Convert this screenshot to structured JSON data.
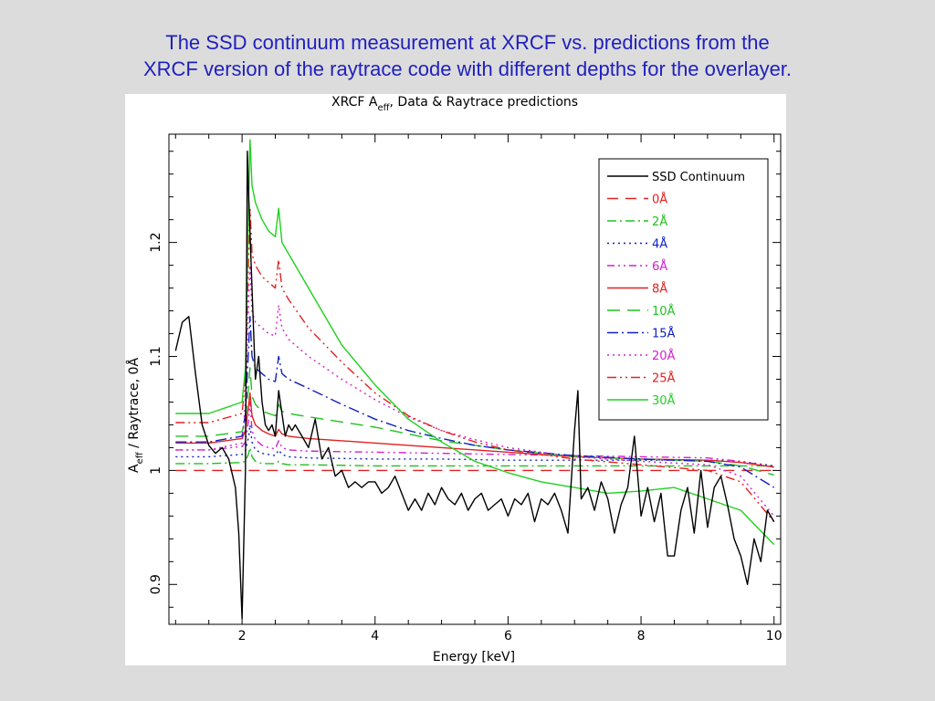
{
  "slide": {
    "title_line1": "The SSD continuum measurement at XRCF vs. predictions from the",
    "title_line2": "XRCF version of the raytrace code with different depths for the overlayer."
  },
  "colors": {
    "title": "#1f1fbf",
    "background": "#dcdcdc",
    "plot_bg": "#ffffff"
  },
  "chart_data": {
    "type": "line",
    "title_parts": {
      "main": "XRCF A",
      "sub": "eff",
      "rest": ", Data & Raytrace predictions"
    },
    "xlabel": "Energy [keV]",
    "ylabel_parts": {
      "main": "A",
      "sub": "eff",
      "rest": " / Raytrace, 0Å"
    },
    "xlim": [
      0.9,
      10.1
    ],
    "ylim": [
      0.865,
      1.295
    ],
    "xticks": [
      2,
      4,
      6,
      8,
      10
    ],
    "yticks": [
      0.9,
      1.0,
      1.1,
      1.2
    ],
    "ytick_labels": [
      "0.9",
      "1",
      "1.1",
      "1.2"
    ],
    "grid": false,
    "legend_position": "top-right",
    "series": [
      {
        "name": "SSD Continuum",
        "color": "#000000",
        "dash": "solid",
        "x": [
          1.0,
          1.1,
          1.2,
          1.3,
          1.4,
          1.5,
          1.6,
          1.7,
          1.8,
          1.9,
          1.95,
          2.0,
          2.05,
          2.08,
          2.1,
          2.15,
          2.2,
          2.25,
          2.3,
          2.35,
          2.4,
          2.45,
          2.5,
          2.55,
          2.6,
          2.65,
          2.7,
          2.75,
          2.8,
          2.9,
          3.0,
          3.1,
          3.2,
          3.3,
          3.4,
          3.5,
          3.6,
          3.7,
          3.8,
          3.9,
          4.0,
          4.1,
          4.2,
          4.3,
          4.4,
          4.5,
          4.6,
          4.7,
          4.8,
          4.9,
          5.0,
          5.1,
          5.2,
          5.3,
          5.4,
          5.5,
          5.6,
          5.7,
          5.8,
          5.9,
          6.0,
          6.1,
          6.2,
          6.3,
          6.4,
          6.5,
          6.6,
          6.7,
          6.8,
          6.9,
          7.0,
          7.05,
          7.1,
          7.2,
          7.3,
          7.4,
          7.5,
          7.6,
          7.7,
          7.8,
          7.9,
          8.0,
          8.1,
          8.2,
          8.3,
          8.4,
          8.5,
          8.6,
          8.7,
          8.8,
          8.9,
          9.0,
          9.1,
          9.2,
          9.3,
          9.4,
          9.5,
          9.6,
          9.7,
          9.8,
          9.9,
          10.0
        ],
        "y": [
          1.105,
          1.13,
          1.135,
          1.085,
          1.04,
          1.022,
          1.015,
          1.02,
          1.01,
          0.985,
          0.945,
          0.87,
          1.0,
          1.28,
          1.24,
          1.16,
          1.08,
          1.1,
          1.06,
          1.04,
          1.035,
          1.04,
          1.03,
          1.07,
          1.05,
          1.03,
          1.04,
          1.035,
          1.04,
          1.03,
          1.02,
          1.045,
          1.01,
          1.02,
          0.995,
          1.0,
          0.985,
          0.99,
          0.985,
          0.99,
          0.99,
          0.98,
          0.985,
          0.995,
          0.98,
          0.965,
          0.975,
          0.965,
          0.98,
          0.97,
          0.985,
          0.975,
          0.97,
          0.98,
          0.965,
          0.975,
          0.98,
          0.965,
          0.97,
          0.975,
          0.96,
          0.975,
          0.97,
          0.98,
          0.955,
          0.975,
          0.97,
          0.98,
          0.965,
          0.945,
          1.035,
          1.07,
          0.975,
          0.985,
          0.965,
          0.99,
          0.975,
          0.945,
          0.97,
          0.985,
          1.03,
          0.96,
          0.985,
          0.955,
          0.98,
          0.925,
          0.925,
          0.965,
          0.985,
          0.945,
          1.0,
          0.95,
          0.985,
          0.995,
          0.97,
          0.94,
          0.925,
          0.9,
          0.94,
          0.92,
          0.965,
          0.955
        ]
      },
      {
        "name": "0Å",
        "color": "#e02020",
        "dash": "12,8",
        "x": [
          1.0,
          2.0,
          5.0,
          8.0,
          10.0
        ],
        "y": [
          1.0,
          1.0,
          1.0,
          1.0,
          1.0
        ]
      },
      {
        "name": "2Å",
        "color": "#20c020",
        "dash": "10,4,2,4",
        "x": [
          1.0,
          1.5,
          2.0,
          2.05,
          2.1,
          2.12,
          2.15,
          2.2,
          2.3,
          2.4,
          2.5,
          2.55,
          2.6,
          2.7,
          3.0,
          4.0,
          5.0,
          6.0,
          7.0,
          8.0,
          9.0,
          10.0
        ],
        "y": [
          1.006,
          1.006,
          1.007,
          1.008,
          1.015,
          1.02,
          1.012,
          1.008,
          1.006,
          1.006,
          1.006,
          1.008,
          1.006,
          1.005,
          1.005,
          1.004,
          1.004,
          1.004,
          1.004,
          1.004,
          1.004,
          1.004
        ]
      },
      {
        "name": "4Å",
        "color": "#1020c0",
        "dash": "2,4",
        "x": [
          1.0,
          1.5,
          2.0,
          2.05,
          2.1,
          2.12,
          2.15,
          2.2,
          2.3,
          2.4,
          2.5,
          2.55,
          2.6,
          2.7,
          3.0,
          4.0,
          5.0,
          6.0,
          7.0,
          8.0,
          9.0,
          9.5,
          10.0
        ],
        "y": [
          1.012,
          1.012,
          1.014,
          1.017,
          1.03,
          1.04,
          1.025,
          1.018,
          1.015,
          1.014,
          1.013,
          1.018,
          1.014,
          1.012,
          1.011,
          1.01,
          1.01,
          1.009,
          1.009,
          1.009,
          1.009,
          1.008,
          1.004
        ]
      },
      {
        "name": "6Å",
        "color": "#d020d0",
        "dash": "8,4,2,4,2,4",
        "x": [
          1.0,
          1.5,
          2.0,
          2.05,
          2.1,
          2.12,
          2.15,
          2.2,
          2.3,
          2.4,
          2.5,
          2.55,
          2.6,
          2.7,
          3.0,
          4.0,
          5.0,
          6.0,
          7.0,
          8.0,
          9.0,
          9.5,
          10.0
        ],
        "y": [
          1.018,
          1.018,
          1.021,
          1.025,
          1.045,
          1.06,
          1.035,
          1.027,
          1.022,
          1.02,
          1.019,
          1.026,
          1.02,
          1.018,
          1.017,
          1.016,
          1.015,
          1.014,
          1.013,
          1.012,
          1.011,
          1.008,
          1.003
        ]
      },
      {
        "name": "8Å",
        "color": "#e02020",
        "dash": "solid",
        "x": [
          1.0,
          1.5,
          2.0,
          2.05,
          2.1,
          2.12,
          2.15,
          2.2,
          2.3,
          2.4,
          2.5,
          2.55,
          2.6,
          2.7,
          3.0,
          4.0,
          5.0,
          6.0,
          7.0,
          8.0,
          9.0,
          9.5,
          10.0
        ],
        "y": [
          1.024,
          1.024,
          1.028,
          1.035,
          1.058,
          1.068,
          1.048,
          1.04,
          1.035,
          1.032,
          1.03,
          1.036,
          1.032,
          1.03,
          1.028,
          1.024,
          1.02,
          1.016,
          1.012,
          1.01,
          1.009,
          1.007,
          1.003
        ]
      },
      {
        "name": "10Å",
        "color": "#20c020",
        "dash": "14,8",
        "x": [
          1.0,
          1.5,
          2.0,
          2.05,
          2.1,
          2.12,
          2.15,
          2.2,
          2.3,
          2.4,
          2.5,
          2.55,
          2.6,
          2.7,
          3.0,
          4.0,
          5.0,
          6.0,
          7.0,
          8.0,
          9.0,
          9.5,
          10.0
        ],
        "y": [
          1.03,
          1.03,
          1.034,
          1.045,
          1.075,
          1.09,
          1.065,
          1.058,
          1.052,
          1.05,
          1.048,
          1.058,
          1.052,
          1.05,
          1.047,
          1.038,
          1.026,
          1.018,
          1.012,
          1.01,
          1.008,
          1.004,
          0.996
        ]
      },
      {
        "name": "15Å",
        "color": "#1020c0",
        "dash": "12,4,2,4",
        "x": [
          1.0,
          1.5,
          2.0,
          2.05,
          2.1,
          2.12,
          2.15,
          2.2,
          2.3,
          2.4,
          2.5,
          2.55,
          2.6,
          2.7,
          3.0,
          3.5,
          4.0,
          4.5,
          5.0,
          5.5,
          6.0,
          7.0,
          8.0,
          9.0,
          9.5,
          10.0
        ],
        "y": [
          1.025,
          1.025,
          1.03,
          1.05,
          1.11,
          1.135,
          1.1,
          1.09,
          1.085,
          1.08,
          1.078,
          1.1,
          1.085,
          1.08,
          1.072,
          1.058,
          1.045,
          1.035,
          1.028,
          1.022,
          1.018,
          1.013,
          1.01,
          1.008,
          1.003,
          0.985
        ]
      },
      {
        "name": "20Å",
        "color": "#d020d0",
        "dash": "2,4",
        "x": [
          1.0,
          1.5,
          2.0,
          2.05,
          2.1,
          2.12,
          2.15,
          2.2,
          2.3,
          2.4,
          2.5,
          2.55,
          2.6,
          2.7,
          3.0,
          3.5,
          4.0,
          4.5,
          5.0,
          5.5,
          6.0,
          7.0,
          8.0,
          9.0,
          9.5,
          10.0
        ],
        "y": [
          1.018,
          1.018,
          1.024,
          1.06,
          1.15,
          1.18,
          1.14,
          1.13,
          1.125,
          1.12,
          1.118,
          1.145,
          1.125,
          1.115,
          1.1,
          1.08,
          1.062,
          1.047,
          1.035,
          1.027,
          1.02,
          1.012,
          1.008,
          1.005,
          0.995,
          0.96
        ]
      },
      {
        "name": "25Å",
        "color": "#e02020",
        "dash": "10,4,2,4,2,4",
        "x": [
          1.0,
          1.5,
          2.0,
          2.05,
          2.1,
          2.12,
          2.15,
          2.2,
          2.3,
          2.4,
          2.5,
          2.55,
          2.6,
          2.7,
          3.0,
          3.5,
          4.0,
          4.5,
          5.0,
          5.5,
          6.0,
          7.0,
          8.0,
          9.0,
          9.5,
          10.0
        ],
        "y": [
          1.042,
          1.042,
          1.05,
          1.08,
          1.19,
          1.23,
          1.19,
          1.18,
          1.17,
          1.165,
          1.16,
          1.185,
          1.16,
          1.15,
          1.125,
          1.095,
          1.068,
          1.048,
          1.035,
          1.025,
          1.018,
          1.01,
          1.005,
          1.0,
          0.99,
          0.955
        ]
      },
      {
        "name": "30Å",
        "color": "#20d020",
        "dash": "solid",
        "x": [
          1.0,
          1.5,
          2.0,
          2.05,
          2.1,
          2.12,
          2.15,
          2.2,
          2.3,
          2.4,
          2.5,
          2.55,
          2.6,
          2.65,
          2.7,
          3.0,
          3.5,
          4.0,
          4.5,
          5.0,
          5.5,
          6.0,
          6.5,
          7.0,
          7.5,
          8.0,
          8.5,
          9.0,
          9.5,
          10.0
        ],
        "y": [
          1.05,
          1.05,
          1.06,
          1.09,
          1.24,
          1.29,
          1.25,
          1.235,
          1.22,
          1.21,
          1.205,
          1.23,
          1.2,
          1.195,
          1.19,
          1.16,
          1.11,
          1.075,
          1.045,
          1.025,
          1.008,
          0.998,
          0.99,
          0.985,
          0.98,
          0.982,
          0.985,
          0.975,
          0.965,
          0.935
        ]
      }
    ]
  }
}
